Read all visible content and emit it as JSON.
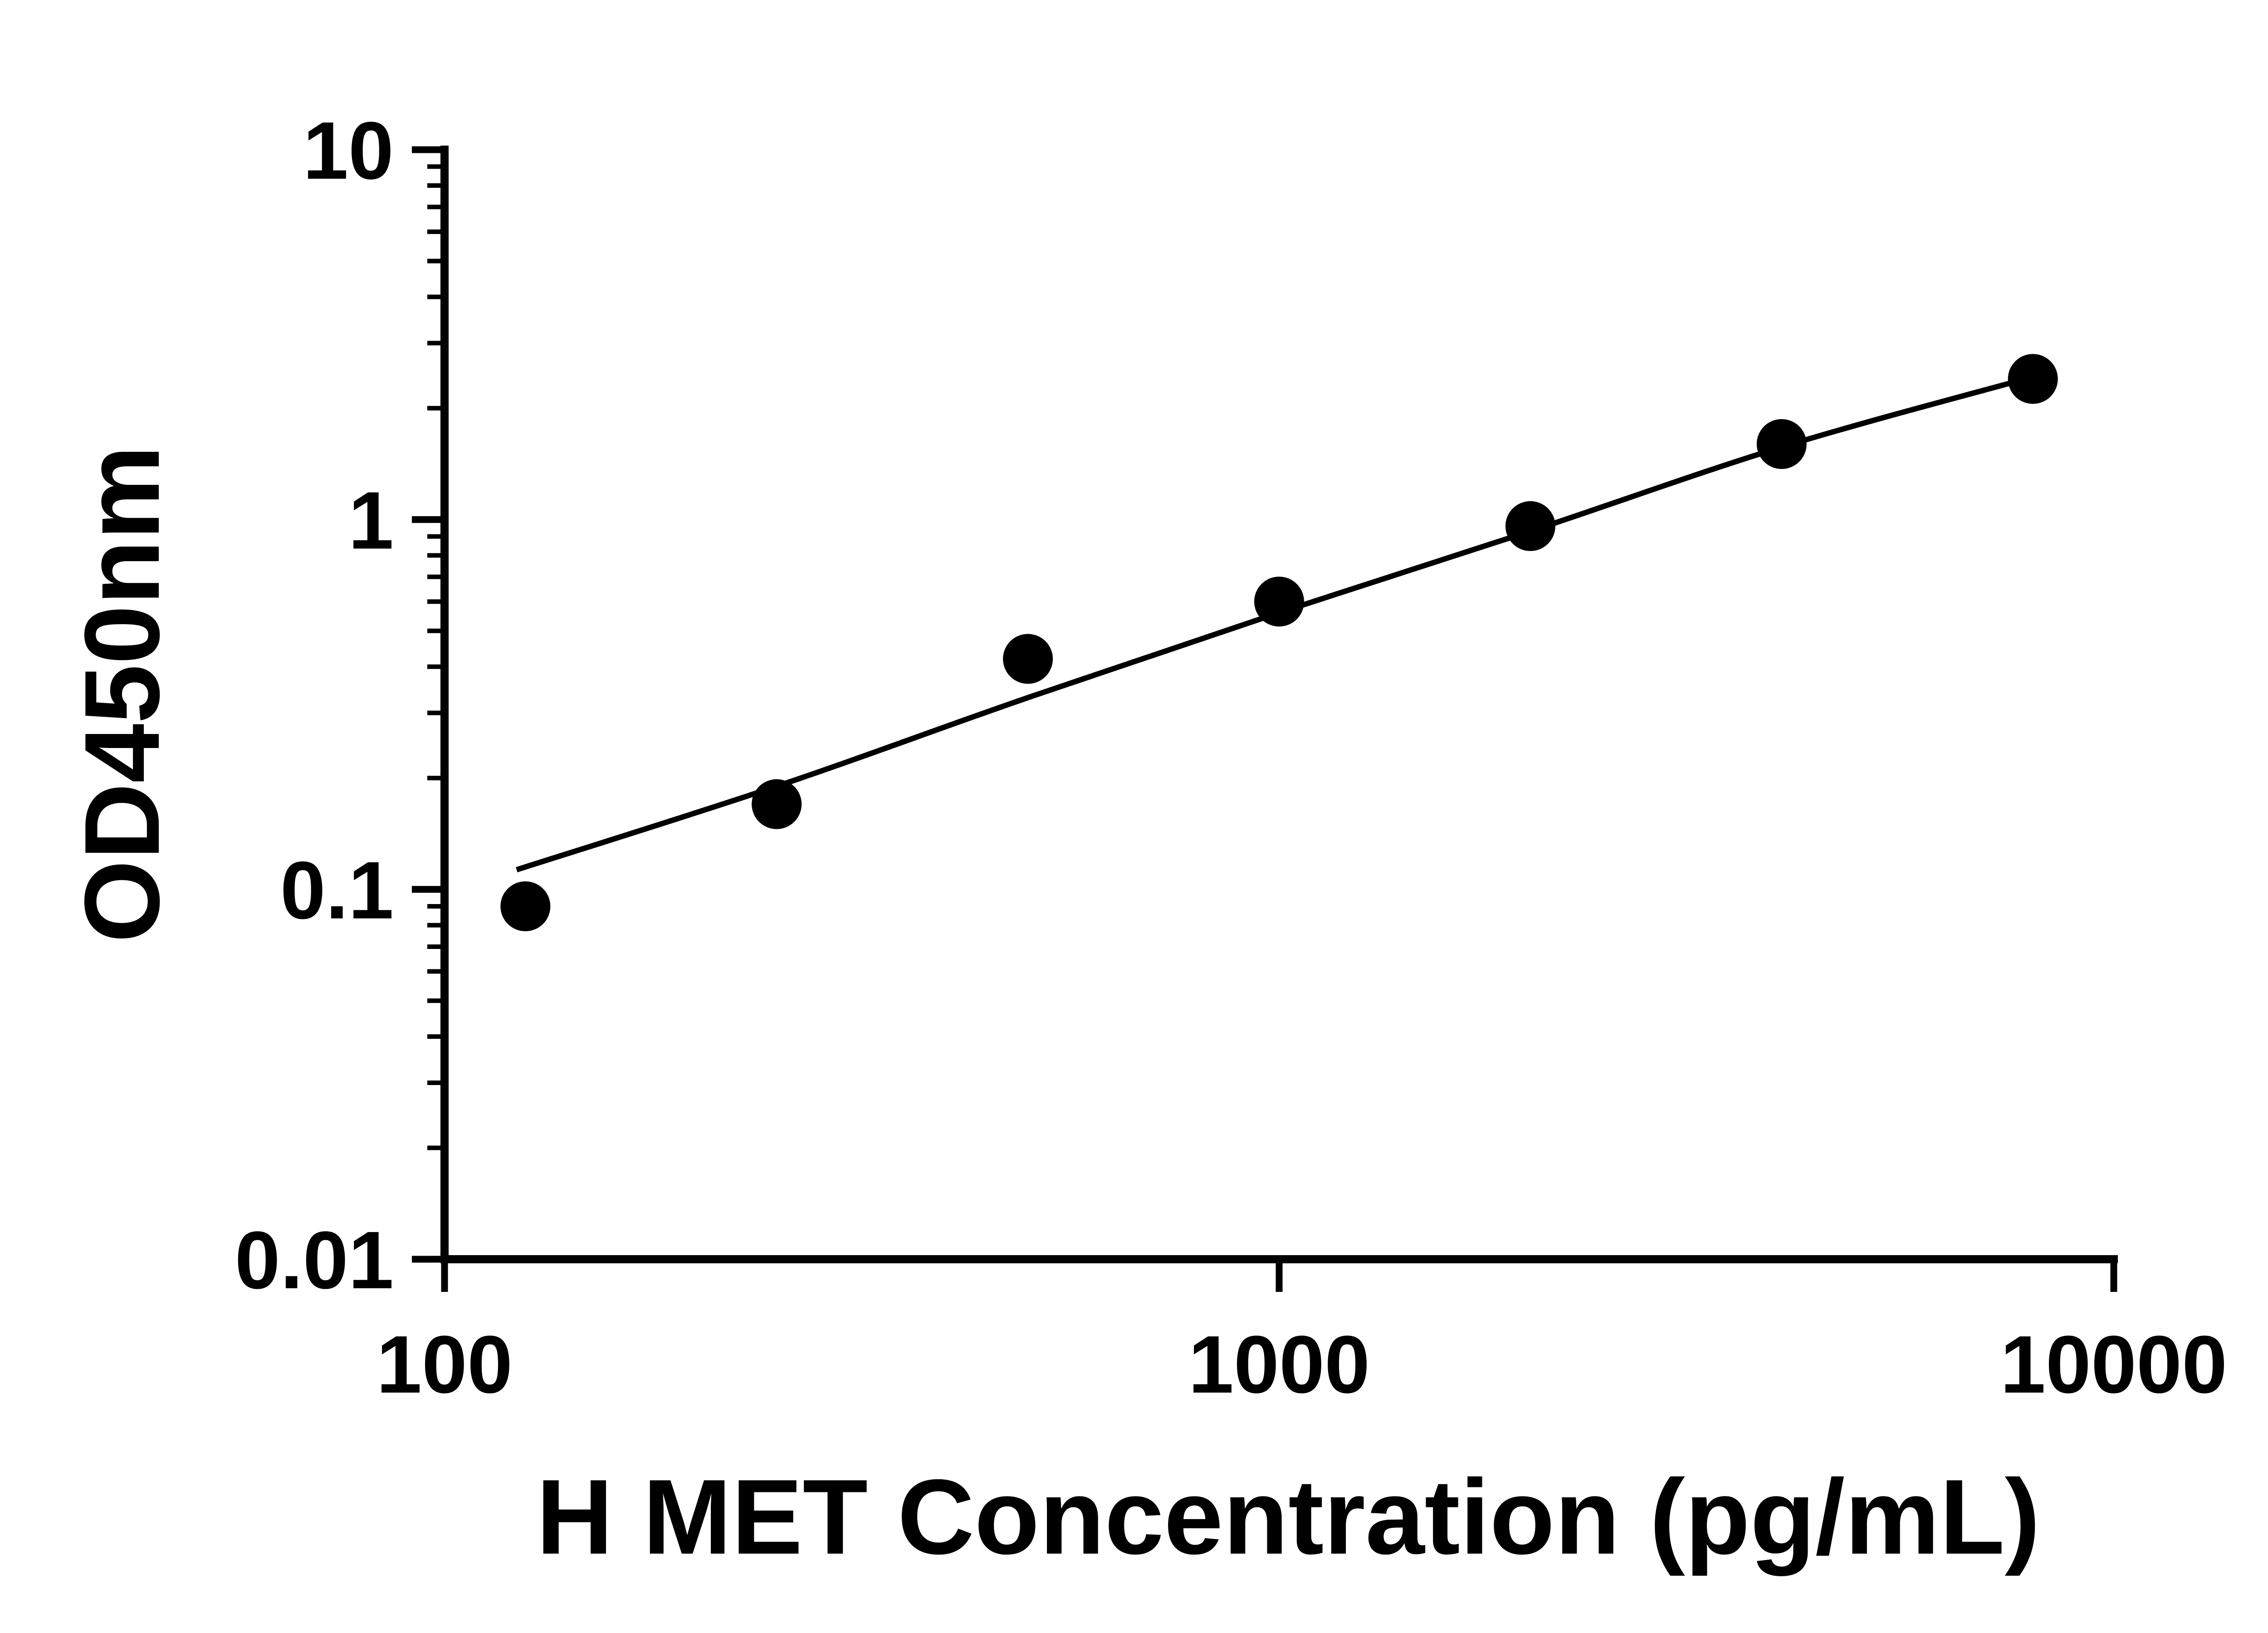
{
  "figure": {
    "background": "#ffffff",
    "foreground": "#000000"
  },
  "chart_data": {
    "type": "scatter",
    "title": "",
    "xlabel": "H MET Concentration (pg/mL)",
    "ylabel": "OD450nm",
    "x_scale": "log10",
    "y_scale": "log10",
    "xlim": [
      100,
      10000
    ],
    "ylim": [
      0.01,
      10
    ],
    "x_ticks": [
      100,
      1000,
      10000
    ],
    "x_tick_labels": [
      "100",
      "1000",
      "10000"
    ],
    "y_ticks": [
      10,
      1,
      0.1,
      0.01
    ],
    "y_tick_labels": [
      "10",
      "1",
      "0.1",
      "0.01"
    ],
    "minor_ticks": "log-decade minor ticks (2-9) on y axis",
    "grid": false,
    "legend": "none",
    "marker": "filled-circle",
    "marker_color": "#000000",
    "line_color": "#000000",
    "x": [
      125,
      250,
      500,
      1000,
      2000,
      4000,
      8000
    ],
    "y": [
      0.09,
      0.17,
      0.42,
      0.6,
      0.96,
      1.6,
      2.4
    ],
    "fit_line": {
      "x": [
        122,
        250,
        500,
        1000,
        2000,
        4000,
        8000
      ],
      "y": [
        0.113,
        0.19,
        0.33,
        0.56,
        0.93,
        1.57,
        2.43
      ]
    }
  }
}
